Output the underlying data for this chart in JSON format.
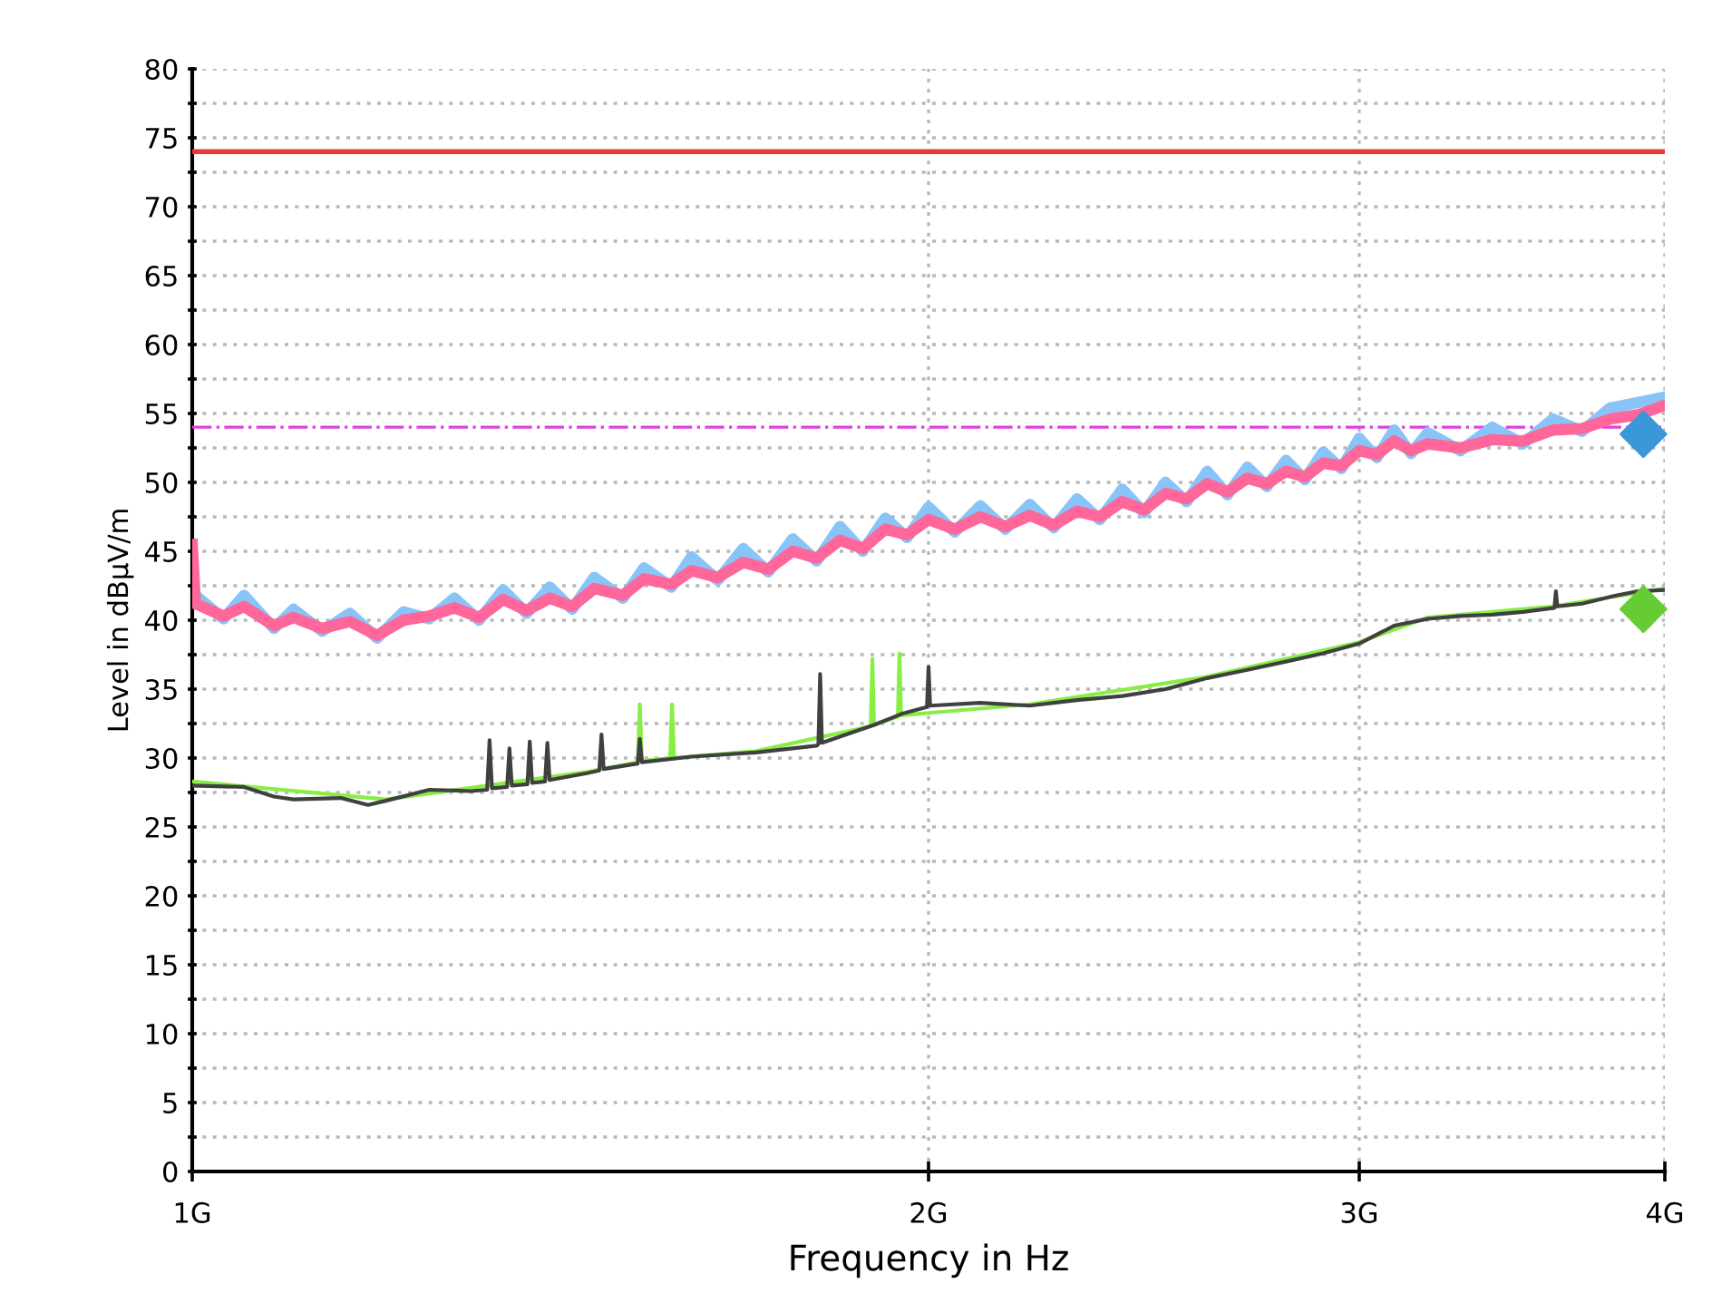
{
  "chart_data": {
    "type": "line",
    "xlabel": "Frequency in Hz",
    "ylabel": "Level in dBµV/m",
    "log": "x",
    "grid": true,
    "line_style": "solid",
    "marker": "none",
    "xlim": [
      1,
      4
    ],
    "xticks": [
      {
        "value": 1,
        "label": "1G"
      },
      {
        "value": 2,
        "label": "2G"
      },
      {
        "value": 3,
        "label": "3G"
      },
      {
        "value": 4,
        "label": "4G"
      }
    ],
    "ylim": [
      0,
      80
    ],
    "yticks": [
      0,
      {
        "value": 2.5,
        "label": null
      },
      5,
      {
        "value": 7.5,
        "label": null
      },
      10,
      {
        "value": 12.5,
        "label": null
      },
      15,
      {
        "value": 17.5,
        "label": null
      },
      20,
      {
        "value": 22.5,
        "label": null
      },
      25,
      {
        "value": 27.5,
        "label": null
      },
      30,
      {
        "value": 32.5,
        "label": null
      },
      35,
      {
        "value": 37.5,
        "label": null
      },
      40,
      {
        "value": 42.5,
        "label": null
      },
      45,
      {
        "value": 47.5,
        "label": null
      },
      50,
      {
        "value": 52.5,
        "label": null
      },
      55,
      {
        "value": 57.5,
        "label": null
      },
      60,
      {
        "value": 62.5,
        "label": null
      },
      65,
      {
        "value": 67.5,
        "label": null
      },
      70,
      {
        "value": 72.5,
        "label": null
      },
      75,
      {
        "value": 77.5,
        "label": null
      },
      80
    ],
    "ref_lines": [
      {
        "axis": "y",
        "value": 74,
        "color": "#e83838",
        "line_style": "solid"
      },
      {
        "axis": "y",
        "value": 54,
        "color": "#e040e0",
        "line_style": "dashdot"
      }
    ],
    "series": [
      {
        "color": "#88c4f8",
        "x": [
          1.003,
          1.03,
          1.05,
          1.08,
          1.1,
          1.13,
          1.16,
          1.19,
          1.22,
          1.25,
          1.28,
          1.31,
          1.34,
          1.37,
          1.4,
          1.43,
          1.46,
          1.5,
          1.53,
          1.57,
          1.6,
          1.64,
          1.68,
          1.72,
          1.76,
          1.8,
          1.84,
          1.88,
          1.92,
          1.96,
          2.0,
          2.05,
          2.1,
          2.15,
          2.2,
          2.25,
          2.3,
          2.35,
          2.4,
          2.45,
          2.5,
          2.55,
          2.6,
          2.65,
          2.7,
          2.75,
          2.8,
          2.85,
          2.9,
          2.95,
          3.0,
          3.05,
          3.1,
          3.15,
          3.2,
          3.3,
          3.4,
          3.5,
          3.6,
          3.7,
          3.8,
          3.9,
          4.0
        ],
        "values": [
          41.8,
          40.1,
          41.8,
          39.4,
          40.8,
          39.2,
          40.5,
          38.7,
          40.6,
          40.1,
          41.6,
          40.0,
          42.2,
          40.5,
          42.4,
          40.8,
          43.1,
          41.6,
          43.8,
          42.4,
          44.6,
          42.9,
          45.2,
          43.5,
          45.9,
          44.3,
          46.8,
          45.0,
          47.4,
          46.0,
          48.2,
          46.4,
          48.3,
          46.6,
          48.4,
          46.7,
          48.8,
          47.3,
          49.5,
          47.8,
          50.0,
          48.6,
          50.8,
          49.1,
          51.1,
          49.7,
          51.6,
          50.2,
          52.2,
          51.0,
          53.2,
          51.8,
          53.8,
          52.1,
          53.6,
          52.3,
          54.0,
          52.8,
          54.6,
          53.7,
          55.4,
          55.8,
          56.2
        ]
      },
      {
        "color": "#ff6699",
        "x": [
          1.0,
          1.003,
          1.03,
          1.05,
          1.08,
          1.1,
          1.13,
          1.16,
          1.19,
          1.22,
          1.25,
          1.28,
          1.31,
          1.34,
          1.37,
          1.4,
          1.43,
          1.46,
          1.5,
          1.53,
          1.57,
          1.6,
          1.64,
          1.68,
          1.72,
          1.76,
          1.8,
          1.84,
          1.88,
          1.92,
          1.96,
          2.0,
          2.05,
          2.1,
          2.15,
          2.2,
          2.25,
          2.3,
          2.35,
          2.4,
          2.45,
          2.5,
          2.55,
          2.6,
          2.65,
          2.7,
          2.75,
          2.8,
          2.85,
          2.9,
          2.95,
          3.0,
          3.05,
          3.1,
          3.15,
          3.2,
          3.3,
          3.4,
          3.5,
          3.6,
          3.7,
          3.8,
          3.9,
          4.0
        ],
        "values": [
          45.5,
          41.2,
          40.3,
          41.0,
          39.6,
          40.2,
          39.4,
          39.9,
          38.9,
          40.0,
          40.3,
          40.9,
          40.2,
          41.5,
          40.7,
          41.6,
          41.0,
          42.3,
          41.8,
          43.0,
          42.6,
          43.6,
          43.1,
          44.2,
          43.7,
          45.0,
          44.5,
          45.8,
          45.2,
          46.6,
          46.2,
          47.3,
          46.6,
          47.5,
          46.8,
          47.6,
          46.9,
          47.9,
          47.5,
          48.6,
          48.0,
          49.2,
          48.8,
          49.9,
          49.3,
          50.3,
          49.9,
          50.8,
          50.4,
          51.4,
          51.2,
          52.3,
          52.0,
          53.0,
          52.3,
          52.8,
          52.5,
          53.1,
          53.0,
          53.8,
          53.9,
          54.6,
          54.9,
          55.6
        ]
      },
      {
        "color": "#88ee44",
        "x": [
          1.0,
          1.2,
          1.45,
          1.521,
          1.524,
          1.527,
          1.568,
          1.571,
          1.574,
          1.7,
          1.894,
          1.897,
          1.9,
          1.943,
          1.946,
          1.949,
          2.2,
          2.6,
          3.0,
          3.2,
          3.6,
          4.0
        ],
        "values": [
          28.3,
          27.0,
          29.0,
          29.7,
          33.9,
          29.8,
          30.0,
          33.9,
          30.0,
          30.5,
          32.3,
          37.2,
          32.4,
          33.0,
          37.6,
          33.1,
          33.9,
          35.9,
          38.4,
          40.2,
          41.0,
          42.3
        ]
      },
      {
        "color": "#404040",
        "x": [
          1.0,
          1.05,
          1.08,
          1.1,
          1.15,
          1.18,
          1.2,
          1.25,
          1.3,
          1.32,
          1.323,
          1.326,
          1.345,
          1.348,
          1.351,
          1.371,
          1.374,
          1.377,
          1.394,
          1.397,
          1.4,
          1.45,
          1.467,
          1.47,
          1.473,
          1.521,
          1.524,
          1.527,
          1.6,
          1.7,
          1.8,
          1.803,
          1.806,
          1.809,
          1.9,
          1.95,
          1.997,
          2.0,
          2.003,
          2.1,
          2.2,
          2.3,
          2.4,
          2.5,
          2.6,
          2.7,
          2.8,
          2.9,
          3.0,
          3.1,
          3.2,
          3.3,
          3.4,
          3.5,
          3.605,
          3.61,
          3.615,
          3.7,
          3.8,
          3.9,
          4.0
        ],
        "values": [
          28.0,
          27.9,
          27.2,
          27.0,
          27.1,
          26.6,
          26.9,
          27.7,
          27.6,
          27.7,
          31.3,
          27.8,
          27.9,
          30.7,
          28.0,
          28.1,
          31.2,
          28.2,
          28.3,
          31.1,
          28.4,
          28.9,
          29.1,
          31.7,
          29.2,
          29.6,
          31.4,
          29.7,
          30.1,
          30.4,
          30.9,
          31.0,
          36.1,
          31.1,
          32.4,
          33.2,
          33.7,
          36.6,
          33.8,
          34.0,
          33.8,
          34.2,
          34.5,
          35.0,
          35.8,
          36.4,
          37.0,
          37.6,
          38.3,
          39.6,
          40.1,
          40.3,
          40.4,
          40.6,
          40.9,
          42.1,
          41.0,
          41.2,
          41.7,
          42.1,
          42.2
        ]
      },
      {
        "type": "scatter",
        "marker": "diamond",
        "color": "#3a98d8",
        "x": [
          3.92
        ],
        "values": [
          53.5
        ]
      },
      {
        "type": "scatter",
        "marker": "diamond",
        "color": "#66cc33",
        "x": [
          3.92
        ],
        "values": [
          40.8
        ]
      }
    ]
  }
}
